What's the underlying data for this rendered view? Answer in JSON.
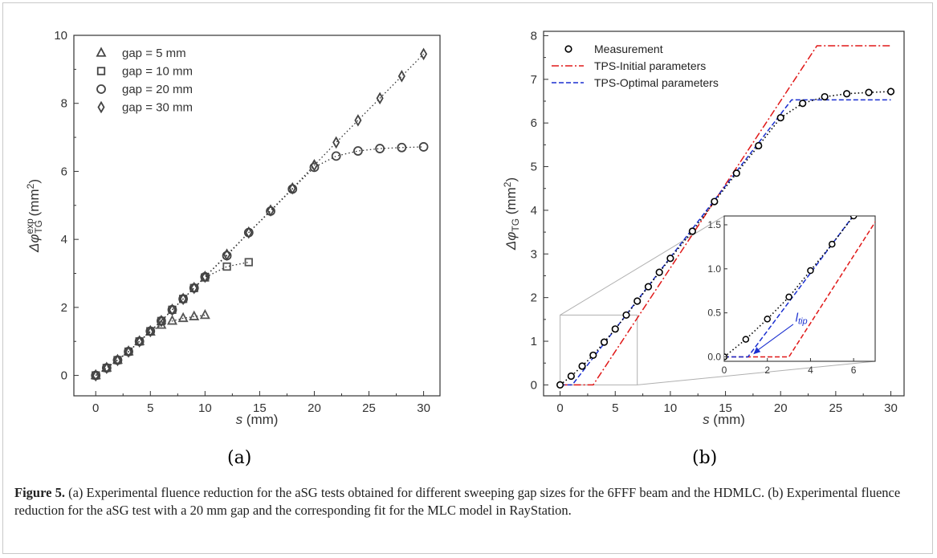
{
  "chart_data": [
    {
      "type": "scatter",
      "panel": "(a)",
      "xlabel_var": "s",
      "xlabel_unit": " (mm)",
      "ylabel_main": "Δφ",
      "ylabel_sup": "exp",
      "ylabel_sub": "TG",
      "ylabel_unit": " (mm",
      "ylabel_unit_sup": "2",
      "ylabel_close": ")",
      "xlim": [
        -2,
        31.5
      ],
      "ylim": [
        -0.6,
        10
      ],
      "xticks": [
        0,
        5,
        10,
        15,
        20,
        25,
        30
      ],
      "yticks": [
        0,
        2,
        4,
        6,
        8,
        10
      ],
      "grid": false,
      "legend_position": "top-left",
      "series": [
        {
          "name": "gap = 5 mm",
          "marker": "triangle",
          "x": [
            0,
            1,
            2,
            3,
            4,
            5,
            6,
            7,
            8,
            9,
            10
          ],
          "y": [
            0,
            0.22,
            0.45,
            0.7,
            1.0,
            1.28,
            1.48,
            1.6,
            1.68,
            1.73,
            1.77
          ]
        },
        {
          "name": "gap = 10 mm",
          "marker": "square",
          "x": [
            0,
            1,
            2,
            3,
            4,
            5,
            6,
            7,
            8,
            9,
            10,
            12,
            14
          ],
          "y": [
            0,
            0.22,
            0.45,
            0.7,
            1.0,
            1.3,
            1.6,
            1.93,
            2.25,
            2.57,
            2.88,
            3.2,
            3.33
          ]
        },
        {
          "name": "gap = 20 mm",
          "marker": "circle",
          "x": [
            0,
            1,
            2,
            3,
            4,
            5,
            6,
            7,
            8,
            9,
            10,
            12,
            14,
            16,
            18,
            20,
            22,
            24,
            26,
            28,
            30
          ],
          "y": [
            0,
            0.22,
            0.45,
            0.7,
            1.0,
            1.3,
            1.6,
            1.93,
            2.25,
            2.57,
            2.9,
            3.52,
            4.2,
            4.83,
            5.48,
            6.12,
            6.45,
            6.6,
            6.67,
            6.7,
            6.72
          ]
        },
        {
          "name": "gap = 30 mm",
          "marker": "diamond",
          "x": [
            0,
            1,
            2,
            3,
            4,
            5,
            6,
            7,
            8,
            9,
            10,
            12,
            14,
            16,
            18,
            20,
            22,
            24,
            26,
            28,
            30
          ],
          "y": [
            0,
            0.22,
            0.45,
            0.7,
            1.0,
            1.3,
            1.6,
            1.93,
            2.25,
            2.57,
            2.9,
            3.55,
            4.2,
            4.85,
            5.5,
            6.18,
            6.85,
            7.5,
            8.15,
            8.8,
            9.45
          ]
        }
      ]
    },
    {
      "type": "line",
      "panel": "(b)",
      "xlabel_var": "s",
      "xlabel_unit": " (mm)",
      "ylabel_main": "Δφ",
      "ylabel_sub": "TG",
      "ylabel_unit": " (mm",
      "ylabel_unit_sup": "2",
      "ylabel_close": ")",
      "xlim": [
        -1.5,
        31.2
      ],
      "ylim": [
        -0.25,
        8.1
      ],
      "xticks": [
        0,
        5,
        10,
        15,
        20,
        25,
        30
      ],
      "yticks": [
        0,
        1,
        2,
        3,
        4,
        5,
        6,
        7,
        8
      ],
      "grid": false,
      "legend_position": "top-left",
      "series": [
        {
          "name": "Measurement",
          "style": "markers+dotted",
          "color": "#000000",
          "x": [
            0,
            1,
            2,
            3,
            4,
            5,
            6,
            7,
            8,
            9,
            10,
            12,
            14,
            16,
            18,
            20,
            22,
            24,
            26,
            28,
            30
          ],
          "y": [
            0,
            0.2,
            0.43,
            0.68,
            0.98,
            1.28,
            1.6,
            1.92,
            2.25,
            2.58,
            2.9,
            3.52,
            4.2,
            4.85,
            5.48,
            6.12,
            6.45,
            6.6,
            6.67,
            6.7,
            6.72
          ]
        },
        {
          "name": "TPS-Initial parameters",
          "style": "dash-dot",
          "color": "#e01818",
          "x": [
            0,
            3,
            23.3,
            30
          ],
          "y": [
            0,
            0,
            7.77,
            7.77
          ]
        },
        {
          "name": "TPS-Optimal parameters",
          "style": "dashed",
          "color": "#1a2fd0",
          "x": [
            0,
            1.1,
            21,
            30
          ],
          "y": [
            0,
            0,
            6.53,
            6.53
          ]
        }
      ],
      "inset": {
        "xlim": [
          0,
          7
        ],
        "ylim": [
          -0.05,
          1.6
        ],
        "xticks": [
          0,
          2,
          4,
          6
        ],
        "yticks": [
          0.0,
          0.5,
          1.0,
          1.5
        ],
        "ytick_labels": [
          "0.0",
          "0.5",
          "1.0",
          "1.5"
        ],
        "annotation_main": "l",
        "annotation_sub": "tip",
        "annotation_color": "#1a2fd0",
        "zoom_box": {
          "x": [
            0,
            7
          ],
          "y": [
            0,
            1.6
          ]
        }
      }
    }
  ],
  "subfigure_labels": {
    "a": "(a)",
    "b": "(b)"
  },
  "caption": {
    "label": "Figure 5.",
    "text": " (a) Experimental fluence reduction for the aSG tests obtained for different sweeping gap sizes for the 6FFF beam and the HDMLC. (b) Experimental fluence reduction for the aSG test with a 20 mm gap and the corresponding fit for the MLC model in RayStation."
  }
}
